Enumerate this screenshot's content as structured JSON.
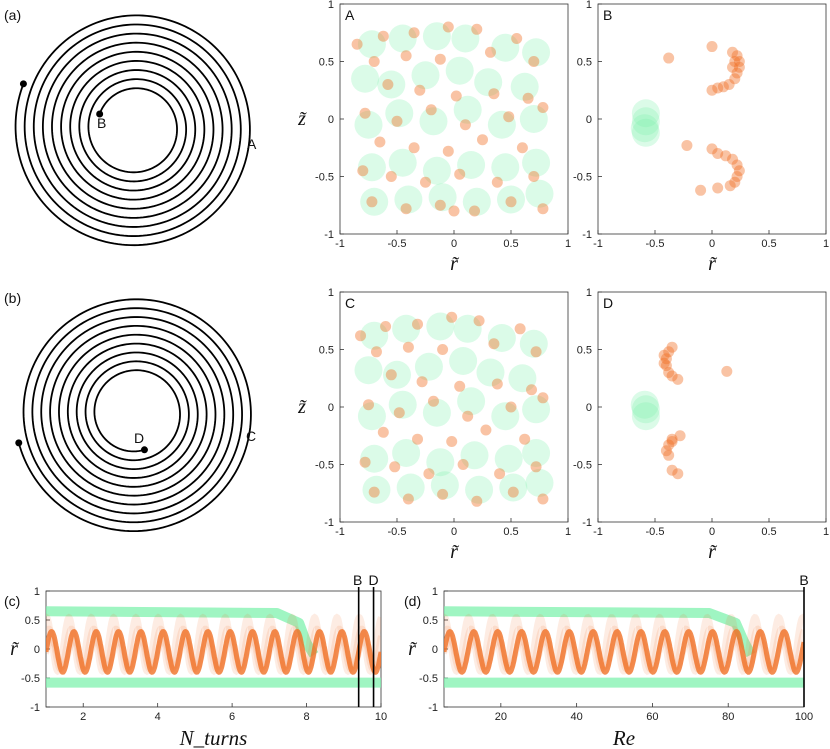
{
  "figure": {
    "panel_tags": [
      "(a)",
      "(b)",
      "(c)",
      "(d)"
    ],
    "spiral_a_labels": {
      "start": "B",
      "end": "A"
    },
    "spiral_b_labels": {
      "start": "D",
      "end": "C"
    }
  },
  "colors": {
    "green": "#7ff2ad",
    "orange": "#f07025",
    "axis": "#333333"
  },
  "chart_data": [
    {
      "id": "A",
      "type": "scatter",
      "panel_label": "A",
      "xlabel": "r̃",
      "ylabel": "z̃",
      "xlim": [
        -1,
        1
      ],
      "ylim": [
        -1,
        1
      ],
      "xticks": [
        -1,
        -0.5,
        0,
        0.5,
        1
      ],
      "yticks": [
        -1,
        -0.5,
        0,
        0.5,
        1
      ],
      "series": [
        {
          "color": "#7ff2ad",
          "points": [
            [
              -0.72,
              0.65
            ],
            [
              -0.45,
              0.7
            ],
            [
              -0.15,
              0.72
            ],
            [
              0.1,
              0.7
            ],
            [
              0.45,
              0.62
            ],
            [
              0.72,
              0.58
            ],
            [
              -0.78,
              0.35
            ],
            [
              -0.55,
              0.3
            ],
            [
              -0.25,
              0.38
            ],
            [
              0.05,
              0.42
            ],
            [
              0.3,
              0.32
            ],
            [
              0.62,
              0.28
            ],
            [
              -0.75,
              -0.05
            ],
            [
              -0.48,
              0.05
            ],
            [
              -0.18,
              -0.02
            ],
            [
              0.12,
              0.08
            ],
            [
              0.42,
              -0.05
            ],
            [
              0.7,
              0.0
            ],
            [
              -0.72,
              -0.42
            ],
            [
              -0.45,
              -0.38
            ],
            [
              -0.15,
              -0.45
            ],
            [
              0.15,
              -0.4
            ],
            [
              0.45,
              -0.42
            ],
            [
              0.72,
              -0.38
            ],
            [
              -0.7,
              -0.72
            ],
            [
              -0.4,
              -0.7
            ],
            [
              -0.1,
              -0.68
            ],
            [
              0.2,
              -0.72
            ],
            [
              0.5,
              -0.7
            ],
            [
              0.75,
              -0.65
            ]
          ]
        },
        {
          "color": "#f07025",
          "points": [
            [
              -0.85,
              0.65
            ],
            [
              -0.62,
              0.72
            ],
            [
              -0.35,
              0.75
            ],
            [
              -0.05,
              0.8
            ],
            [
              0.2,
              0.78
            ],
            [
              0.55,
              0.7
            ],
            [
              -0.7,
              0.5
            ],
            [
              -0.42,
              0.55
            ],
            [
              -0.12,
              0.52
            ],
            [
              0.32,
              0.58
            ],
            [
              0.7,
              0.5
            ],
            [
              -0.58,
              0.3
            ],
            [
              -0.3,
              0.25
            ],
            [
              0.02,
              0.2
            ],
            [
              0.35,
              0.22
            ],
            [
              0.65,
              0.18
            ],
            [
              -0.78,
              0.05
            ],
            [
              -0.5,
              -0.02
            ],
            [
              -0.2,
              0.08
            ],
            [
              0.1,
              -0.05
            ],
            [
              0.48,
              0.02
            ],
            [
              0.78,
              0.1
            ],
            [
              -0.65,
              -0.2
            ],
            [
              -0.35,
              -0.25
            ],
            [
              -0.05,
              -0.28
            ],
            [
              0.25,
              -0.18
            ],
            [
              0.6,
              -0.25
            ],
            [
              -0.8,
              -0.45
            ],
            [
              -0.55,
              -0.5
            ],
            [
              -0.25,
              -0.55
            ],
            [
              0.05,
              -0.48
            ],
            [
              0.38,
              -0.55
            ],
            [
              0.7,
              -0.5
            ],
            [
              -0.72,
              -0.72
            ],
            [
              -0.42,
              -0.78
            ],
            [
              -0.12,
              -0.75
            ],
            [
              0.18,
              -0.8
            ],
            [
              0.5,
              -0.72
            ],
            [
              0.78,
              -0.78
            ],
            [
              0.0,
              -0.8
            ]
          ]
        }
      ]
    },
    {
      "id": "B",
      "type": "scatter",
      "panel_label": "B",
      "xlabel": "r̃",
      "ylabel": "",
      "xlim": [
        -1,
        1
      ],
      "ylim": [
        -1,
        1
      ],
      "xticks": [
        -1,
        -0.5,
        0,
        0.5,
        1
      ],
      "yticks": [
        -1,
        -0.5,
        0,
        0.5,
        1
      ],
      "series": [
        {
          "color": "#7ff2ad",
          "points": [
            [
              -0.58,
              -0.02
            ],
            [
              -0.58,
              -0.12
            ],
            [
              -0.58,
              0.05
            ],
            [
              -0.59,
              -0.08
            ]
          ]
        },
        {
          "color": "#f07025",
          "points": [
            [
              0.18,
              0.58
            ],
            [
              0.22,
              0.55
            ],
            [
              0.24,
              0.5
            ],
            [
              0.24,
              0.45
            ],
            [
              0.22,
              0.4
            ],
            [
              0.2,
              0.35
            ],
            [
              0.15,
              0.3
            ],
            [
              0.1,
              0.28
            ],
            [
              0.05,
              0.27
            ],
            [
              0.0,
              0.25
            ],
            [
              0.2,
              0.5
            ],
            [
              0.18,
              0.45
            ],
            [
              0.22,
              -0.5
            ],
            [
              0.24,
              -0.45
            ],
            [
              0.22,
              -0.4
            ],
            [
              0.18,
              -0.35
            ],
            [
              0.12,
              -0.32
            ],
            [
              0.05,
              -0.3
            ],
            [
              0.2,
              -0.55
            ],
            [
              0.16,
              -0.58
            ],
            [
              0.0,
              0.63
            ],
            [
              -0.38,
              0.53
            ],
            [
              -0.22,
              -0.23
            ],
            [
              0.0,
              -0.26
            ],
            [
              -0.1,
              -0.62
            ],
            [
              0.05,
              -0.6
            ]
          ]
        }
      ]
    },
    {
      "id": "C",
      "type": "scatter",
      "panel_label": "C",
      "xlabel": "r̃",
      "ylabel": "z̃",
      "xlim": [
        -1,
        1
      ],
      "ylim": [
        -1,
        1
      ],
      "xticks": [
        -1,
        -0.5,
        0,
        0.5,
        1
      ],
      "yticks": [
        -1,
        -0.5,
        0,
        0.5,
        1
      ],
      "series": [
        {
          "color": "#7ff2ad",
          "points": [
            [
              -0.7,
              0.62
            ],
            [
              -0.42,
              0.68
            ],
            [
              -0.12,
              0.7
            ],
            [
              0.12,
              0.68
            ],
            [
              0.42,
              0.6
            ],
            [
              0.7,
              0.55
            ],
            [
              -0.75,
              0.32
            ],
            [
              -0.5,
              0.28
            ],
            [
              -0.22,
              0.35
            ],
            [
              0.08,
              0.4
            ],
            [
              0.32,
              0.3
            ],
            [
              0.6,
              0.25
            ],
            [
              -0.72,
              -0.08
            ],
            [
              -0.45,
              0.02
            ],
            [
              -0.15,
              -0.05
            ],
            [
              0.15,
              0.05
            ],
            [
              0.45,
              -0.08
            ],
            [
              0.72,
              -0.02
            ],
            [
              -0.7,
              -0.45
            ],
            [
              -0.42,
              -0.4
            ],
            [
              -0.12,
              -0.48
            ],
            [
              0.18,
              -0.42
            ],
            [
              0.48,
              -0.45
            ],
            [
              0.72,
              -0.4
            ],
            [
              -0.68,
              -0.72
            ],
            [
              -0.38,
              -0.7
            ],
            [
              -0.08,
              -0.68
            ],
            [
              0.22,
              -0.72
            ],
            [
              0.52,
              -0.7
            ],
            [
              0.75,
              -0.66
            ]
          ]
        },
        {
          "color": "#f07025",
          "points": [
            [
              -0.82,
              0.62
            ],
            [
              -0.6,
              0.7
            ],
            [
              -0.32,
              0.72
            ],
            [
              -0.02,
              0.78
            ],
            [
              0.22,
              0.75
            ],
            [
              0.58,
              0.68
            ],
            [
              -0.68,
              0.48
            ],
            [
              -0.4,
              0.52
            ],
            [
              -0.1,
              0.5
            ],
            [
              0.35,
              0.55
            ],
            [
              0.72,
              0.48
            ],
            [
              -0.55,
              0.28
            ],
            [
              -0.28,
              0.22
            ],
            [
              0.05,
              0.18
            ],
            [
              0.38,
              0.2
            ],
            [
              0.68,
              0.15
            ],
            [
              -0.75,
              0.02
            ],
            [
              -0.48,
              -0.05
            ],
            [
              -0.18,
              0.05
            ],
            [
              0.12,
              -0.08
            ],
            [
              0.5,
              0.0
            ],
            [
              0.78,
              0.08
            ],
            [
              -0.62,
              -0.22
            ],
            [
              -0.32,
              -0.28
            ],
            [
              -0.02,
              -0.3
            ],
            [
              0.28,
              -0.2
            ],
            [
              0.62,
              -0.28
            ],
            [
              -0.78,
              -0.48
            ],
            [
              -0.52,
              -0.52
            ],
            [
              -0.22,
              -0.58
            ],
            [
              0.08,
              -0.5
            ],
            [
              0.4,
              -0.58
            ],
            [
              0.72,
              -0.52
            ],
            [
              -0.7,
              -0.74
            ],
            [
              -0.4,
              -0.8
            ],
            [
              -0.1,
              -0.76
            ],
            [
              0.2,
              -0.82
            ],
            [
              0.52,
              -0.74
            ],
            [
              0.78,
              -0.8
            ]
          ]
        }
      ]
    },
    {
      "id": "D",
      "type": "scatter",
      "panel_label": "D",
      "xlabel": "r̃",
      "ylabel": "",
      "xlim": [
        -1,
        1
      ],
      "ylim": [
        -1,
        1
      ],
      "xticks": [
        -1,
        -0.5,
        0,
        0.5,
        1
      ],
      "yticks": [
        -1,
        -0.5,
        0,
        0.5,
        1
      ],
      "series": [
        {
          "color": "#7ff2ad",
          "points": [
            [
              -0.58,
              -0.02
            ],
            [
              -0.58,
              -0.08
            ],
            [
              -0.59,
              0.02
            ]
          ]
        },
        {
          "color": "#f07025",
          "points": [
            [
              -0.35,
              0.52
            ],
            [
              -0.38,
              0.48
            ],
            [
              -0.4,
              0.42
            ],
            [
              -0.4,
              0.36
            ],
            [
              -0.38,
              0.3
            ],
            [
              -0.35,
              0.27
            ],
            [
              -0.3,
              0.24
            ],
            [
              -0.42,
              0.45
            ],
            [
              -0.35,
              -0.3
            ],
            [
              -0.38,
              -0.33
            ],
            [
              -0.4,
              -0.38
            ],
            [
              -0.38,
              -0.42
            ],
            [
              -0.35,
              -0.28
            ],
            [
              -0.28,
              -0.25
            ],
            [
              -0.3,
              -0.58
            ],
            [
              -0.35,
              -0.55
            ],
            [
              0.13,
              0.31
            ],
            [
              -0.42,
              0.38
            ]
          ]
        }
      ]
    },
    {
      "id": "c",
      "type": "line",
      "xlabel": "N_turns",
      "ylabel": "r̃",
      "xlim": [
        1,
        10
      ],
      "ylim": [
        -1,
        1
      ],
      "xticks": [
        2,
        4,
        6,
        8,
        10
      ],
      "yticks": [
        -1,
        -0.5,
        0,
        0.5,
        1
      ],
      "markers": [
        {
          "x": 9.4,
          "label": "B"
        },
        {
          "x": 9.8,
          "label": "D"
        }
      ],
      "series": [
        {
          "color": "#7ff2ad",
          "kind": "upper-band",
          "x": [
            1,
            7.2,
            7.8,
            8.0,
            8.2
          ],
          "values": [
            0.65,
            0.62,
            0.45,
            0.1,
            -0.1
          ]
        },
        {
          "color": "#7ff2ad",
          "kind": "lower-band",
          "x": [
            1,
            10
          ],
          "values": [
            -0.58,
            -0.58
          ]
        },
        {
          "color": "#f07025",
          "kind": "oscillation",
          "x_start": 1,
          "x_end": 10,
          "period": 0.6,
          "amplitude": 0.35
        }
      ]
    },
    {
      "id": "d",
      "type": "line",
      "xlabel": "Re",
      "ylabel": "r̃",
      "xlim": [
        5,
        100
      ],
      "ylim": [
        -1,
        1
      ],
      "xticks": [
        20,
        40,
        60,
        80,
        100
      ],
      "yticks": [
        -1,
        -0.5,
        0,
        0.5,
        1
      ],
      "markers": [
        {
          "x": 100,
          "label": "B"
        }
      ],
      "series": [
        {
          "color": "#7ff2ad",
          "kind": "upper-band",
          "x": [
            5,
            75,
            82,
            84,
            86
          ],
          "values": [
            0.65,
            0.62,
            0.45,
            0.15,
            -0.1
          ]
        },
        {
          "color": "#7ff2ad",
          "kind": "lower-band",
          "x": [
            5,
            100
          ],
          "values": [
            -0.58,
            -0.58
          ]
        },
        {
          "color": "#f07025",
          "kind": "oscillation",
          "x_start": 5,
          "x_end": 100,
          "period": 6.3,
          "amplitude": 0.35
        }
      ]
    }
  ]
}
